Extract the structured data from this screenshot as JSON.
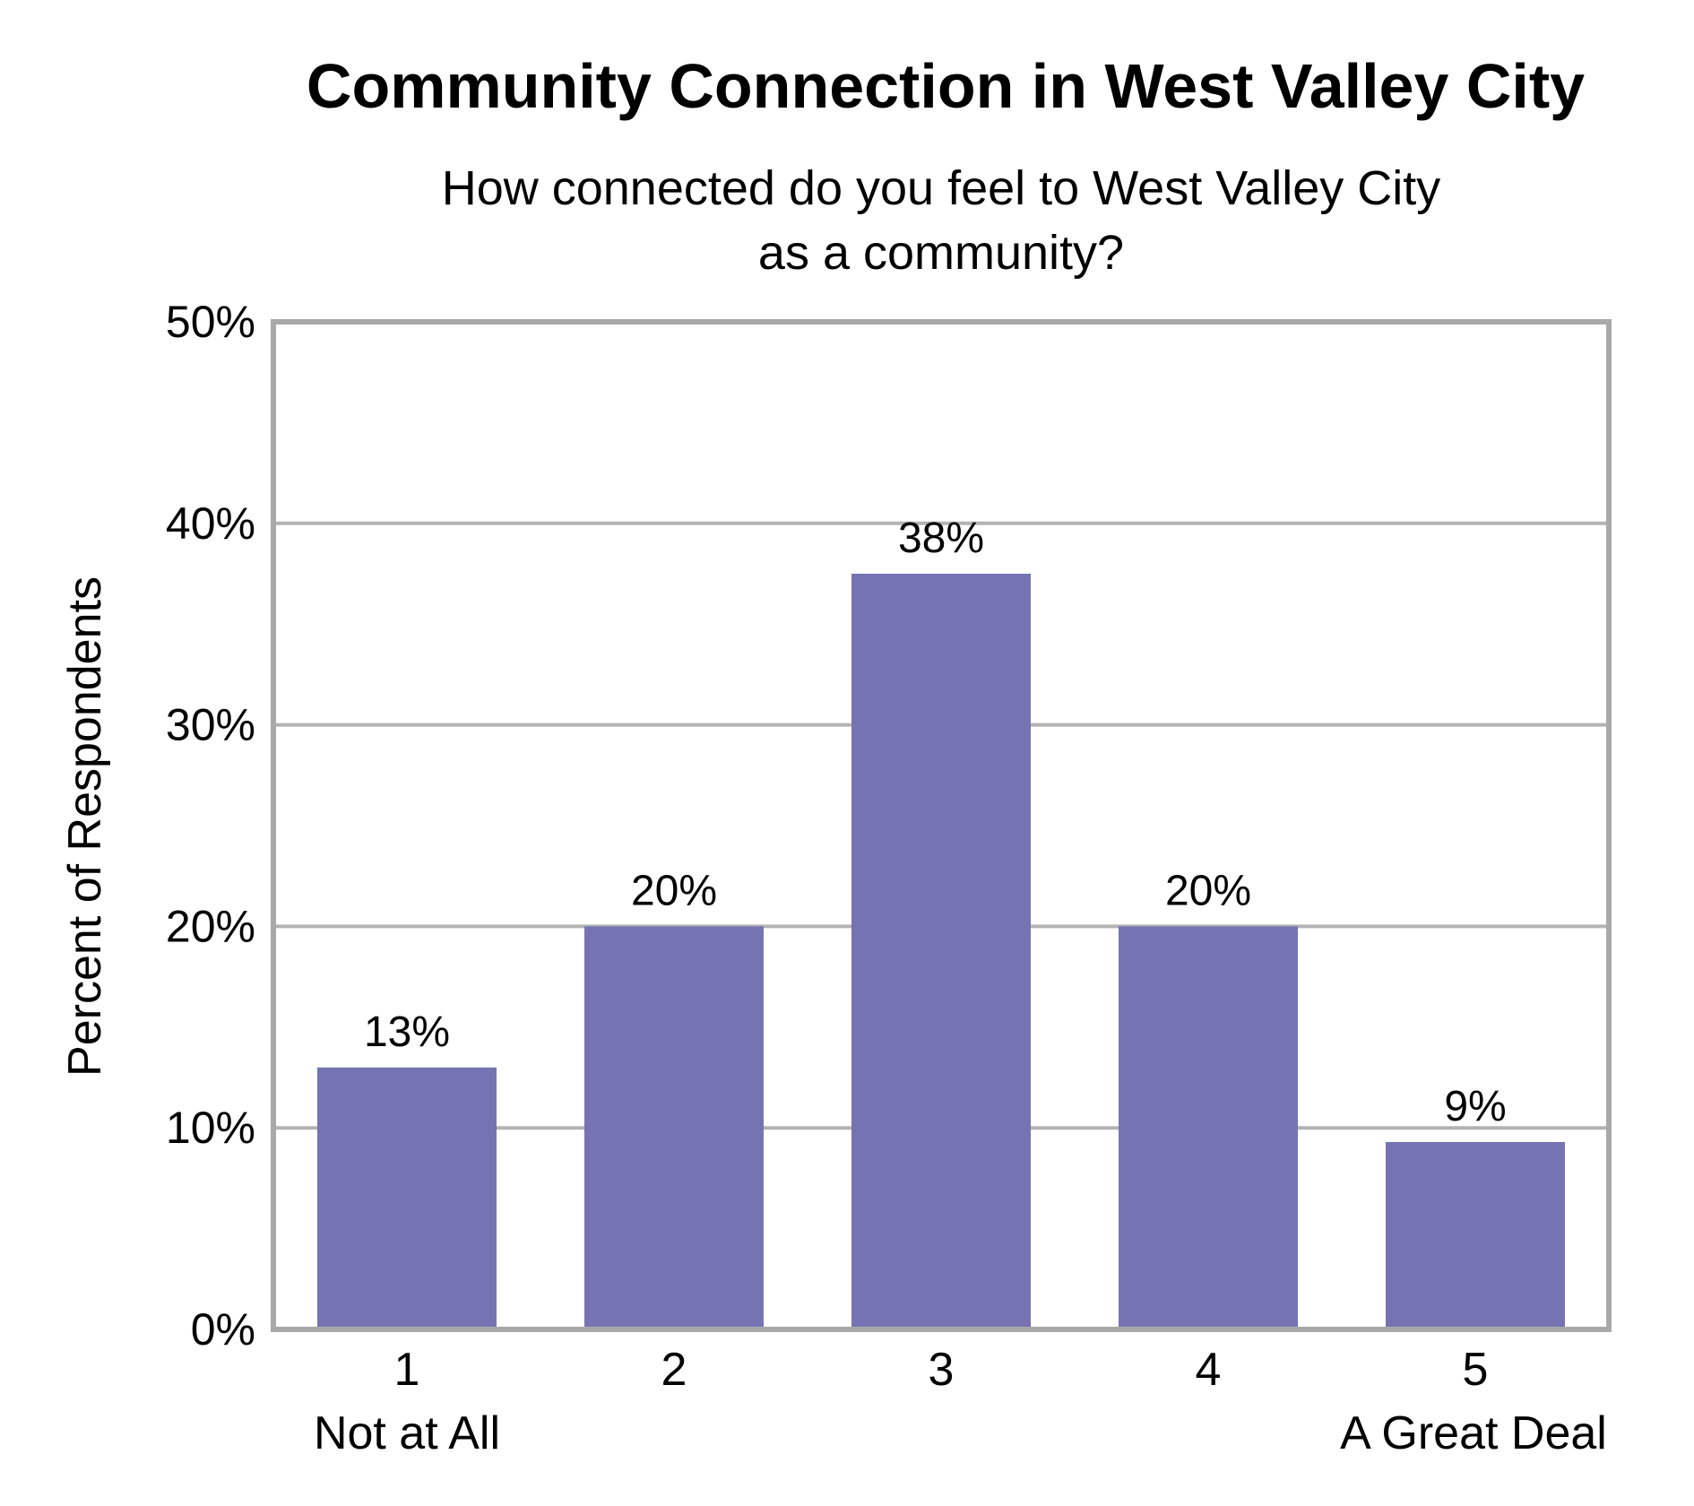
{
  "chart_data": {
    "type": "bar",
    "title": "Community Connection in West Valley City",
    "subtitle_lines": [
      "How connected do you feel to West Valley City",
      "as a community?"
    ],
    "ylabel": "Percent of Respondents",
    "xlabel": "",
    "ylim": [
      0,
      50
    ],
    "yticks": [
      0,
      10,
      20,
      30,
      40,
      50
    ],
    "ytick_labels": [
      "0%",
      "10%",
      "20%",
      "30%",
      "40%",
      "50%"
    ],
    "categories": [
      "1",
      "2",
      "3",
      "4",
      "5"
    ],
    "category_sublabels": [
      "Not at All",
      "",
      "",
      "",
      "A Great Deal"
    ],
    "values": [
      13,
      20,
      37.5,
      20,
      9.3
    ],
    "data_labels": [
      "13%",
      "20%",
      "38%",
      "20%",
      "9%"
    ],
    "grid": true,
    "legend": "none",
    "colors": {
      "bar": "#7673b3",
      "grid": "#b3b3b3",
      "frame": "#a9a9a9"
    }
  }
}
